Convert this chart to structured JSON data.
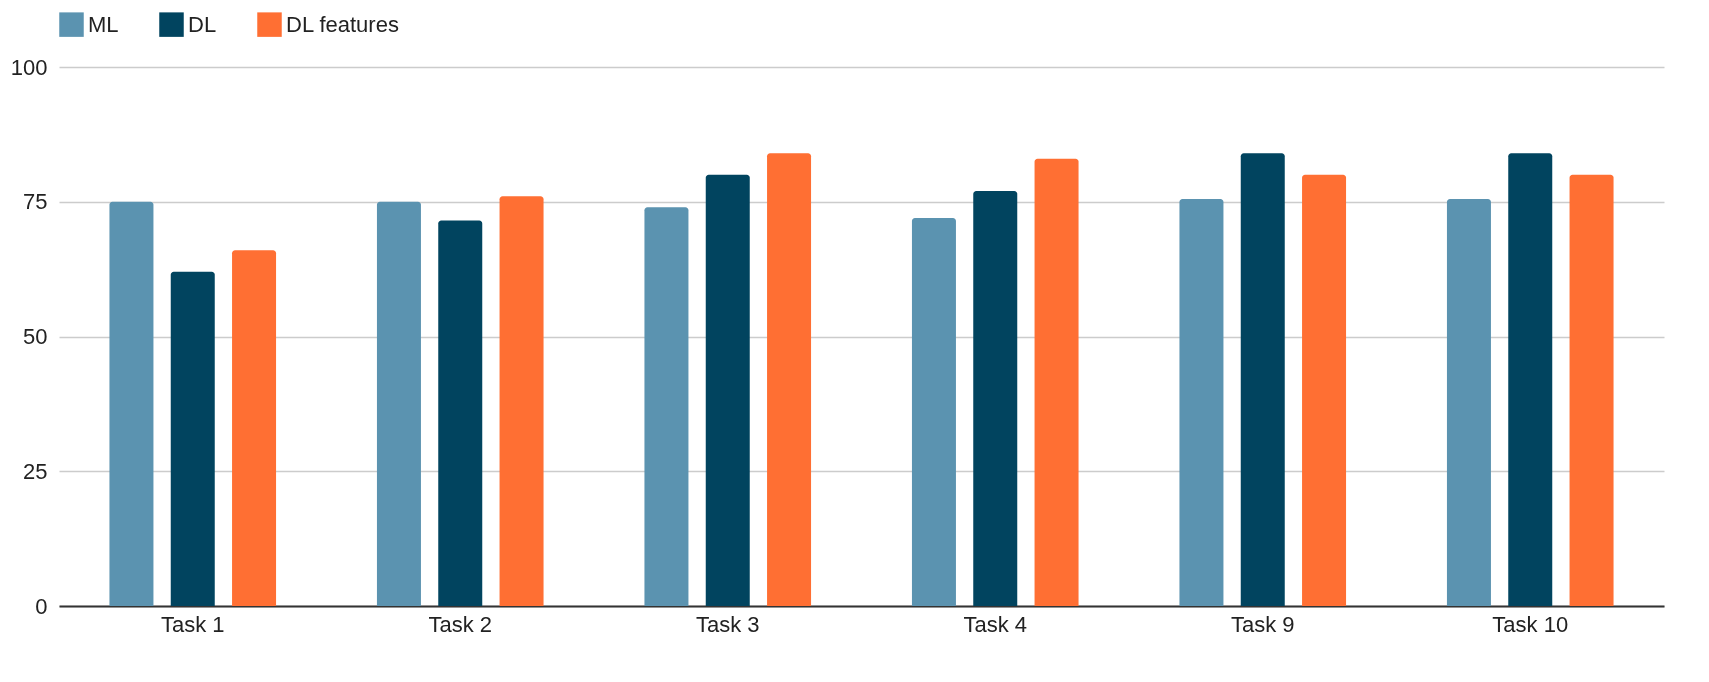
{
  "chart_data": {
    "type": "bar",
    "categories": [
      "Task 1",
      "Task 2",
      "Task 3",
      "Task 4",
      "Task 9",
      "Task 10"
    ],
    "series": [
      {
        "name": "ML",
        "color": "#5b93b0",
        "values": [
          75,
          75,
          74,
          72,
          75.5,
          75.5
        ]
      },
      {
        "name": "DL",
        "color": "#01445f",
        "values": [
          62,
          71.5,
          80,
          77,
          84,
          84
        ]
      },
      {
        "name": "DL features",
        "color": "#ff6f33",
        "values": [
          66,
          76,
          84,
          83,
          80,
          80
        ]
      }
    ],
    "ylim": [
      0,
      100
    ],
    "yticks": [
      0,
      25,
      50,
      75,
      100
    ],
    "grid": "y",
    "legend": "top"
  }
}
